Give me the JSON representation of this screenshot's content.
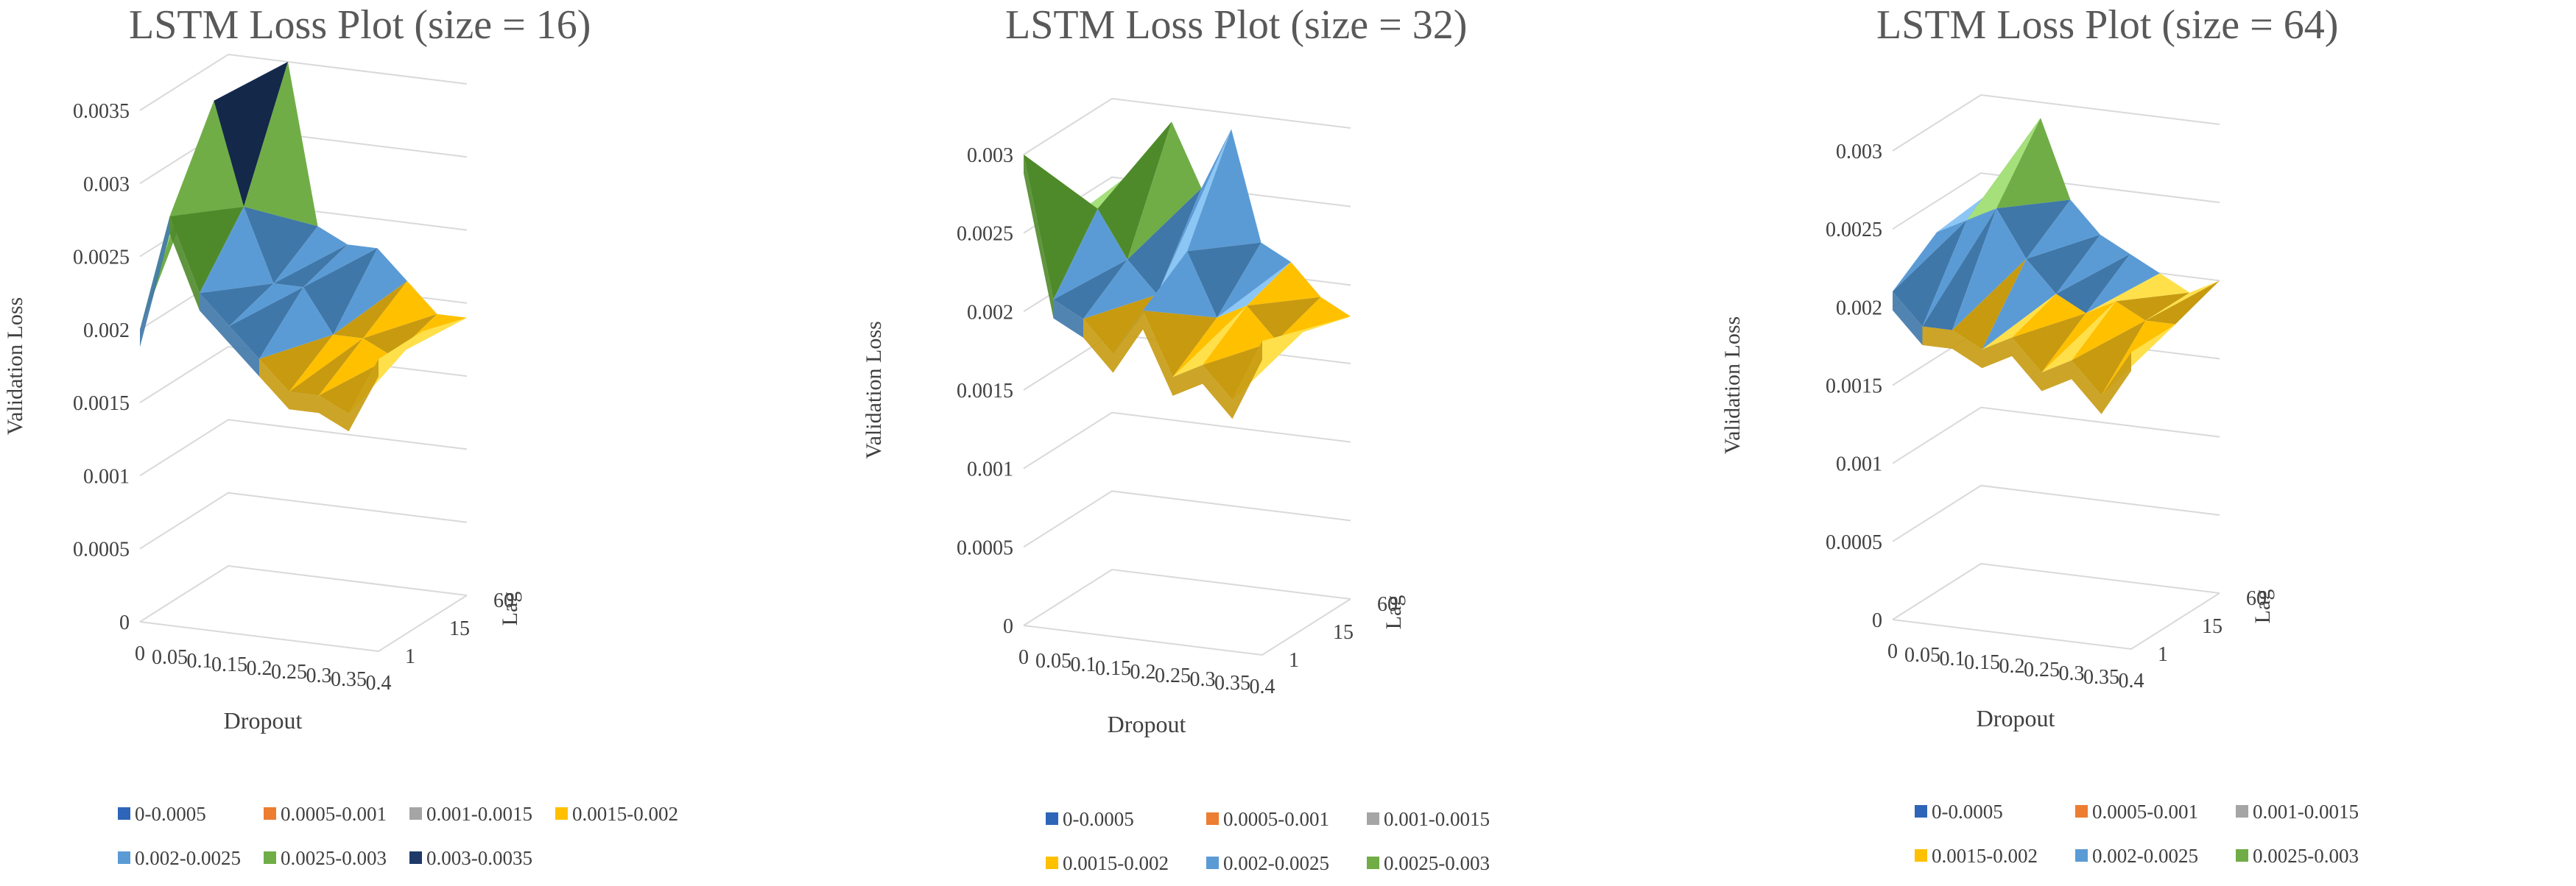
{
  "chart_data": [
    {
      "type": "surface",
      "title": "LSTM Loss Plot (size = 16)",
      "xlabel": "Dropout",
      "ylabel": "Lag",
      "zlabel": "Validation Loss",
      "x": [
        "0",
        "0.05",
        "0.1",
        "0.15",
        "0.2",
        "0.25",
        "0.3",
        "0.35",
        "0.4"
      ],
      "y": [
        "1",
        "15",
        "60"
      ],
      "z_ticks": [
        "0",
        "0.0005",
        "0.001",
        "0.0015",
        "0.002",
        "0.0025",
        "0.003",
        "0.0035"
      ],
      "zlim": [
        0,
        0.0035
      ],
      "values": [
        [
          0.002,
          0.0028,
          0.0023,
          0.0021,
          0.0019,
          0.0017,
          0.0017,
          0.0016,
          0.002
        ],
        [
          0.0026,
          0.0034,
          0.0027,
          0.0022,
          0.0022,
          0.0019,
          0.0019,
          0.0018,
          0.002
        ],
        [
          0.0024,
          0.0031,
          0.0035,
          0.0024,
          0.0023,
          0.0023,
          0.0021,
          0.0019,
          0.0019
        ]
      ],
      "legend": [
        "0-0.0005",
        "0.0005-0.001",
        "0.001-0.0015",
        "0.0015-0.002",
        "0.002-0.0025",
        "0.0025-0.003",
        "0.003-0.0035"
      ]
    },
    {
      "type": "surface",
      "title": "LSTM Loss Plot (size = 32)",
      "xlabel": "Dropout",
      "ylabel": "Lag",
      "zlabel": "Validation Loss",
      "x": [
        "0",
        "0.05",
        "0.1",
        "0.15",
        "0.2",
        "0.25",
        "0.3",
        "0.35",
        "0.4"
      ],
      "y": [
        "1",
        "15",
        "60"
      ],
      "z_ticks": [
        "0",
        "0.0005",
        "0.001",
        "0.0015",
        "0.002",
        "0.0025",
        "0.003"
      ],
      "zlim": [
        0,
        0.003
      ],
      "values": [
        [
          0.003,
          0.0021,
          0.002,
          0.0018,
          0.0021,
          0.0017,
          0.0018,
          0.0016,
          0.002
        ],
        [
          0.0024,
          0.0025,
          0.0022,
          0.002,
          0.0023,
          0.0019,
          0.002,
          0.0018,
          0.0019
        ],
        [
          0.0022,
          0.0026,
          0.0029,
          0.0025,
          0.0029,
          0.0022,
          0.0021,
          0.0019,
          0.0018
        ]
      ],
      "legend": [
        "0-0.0005",
        "0.0005-0.001",
        "0.001-0.0015",
        "0.0015-0.002",
        "0.002-0.0025",
        "0.0025-0.003"
      ]
    },
    {
      "type": "surface",
      "title": "LSTM Loss Plot (size = 64)",
      "xlabel": "Dropout",
      "ylabel": "Lag",
      "zlabel": "Validation Loss",
      "x": [
        "0",
        "0.05",
        "0.1",
        "0.15",
        "0.2",
        "0.25",
        "0.3",
        "0.35",
        "0.4"
      ],
      "y": [
        "1",
        "15",
        "60"
      ],
      "z_ticks": [
        "0",
        "0.0005",
        "0.001",
        "0.0015",
        "0.002",
        "0.0025",
        "0.003"
      ],
      "zlim": [
        0,
        0.003
      ],
      "values": [
        [
          0.0021,
          0.0019,
          0.0019,
          0.0018,
          0.0019,
          0.0017,
          0.0018,
          0.0016,
          0.0019
        ],
        [
          0.0023,
          0.0024,
          0.0025,
          0.0022,
          0.002,
          0.0019,
          0.002,
          0.0019,
          0.0019
        ],
        [
          0.0022,
          0.0025,
          0.0029,
          0.0024,
          0.0022,
          0.0021,
          0.002,
          0.0019,
          0.002
        ]
      ],
      "legend": [
        "0-0.0005",
        "0.0005-0.001",
        "0.001-0.0015",
        "0.0015-0.002",
        "0.002-0.0025",
        "0.0025-0.003"
      ]
    }
  ],
  "legend_colors": [
    "#2e65b8",
    "#ed7d31",
    "#a5a5a5",
    "#ffc000",
    "#5b9bd5",
    "#70ad47",
    "#1f3a68"
  ]
}
